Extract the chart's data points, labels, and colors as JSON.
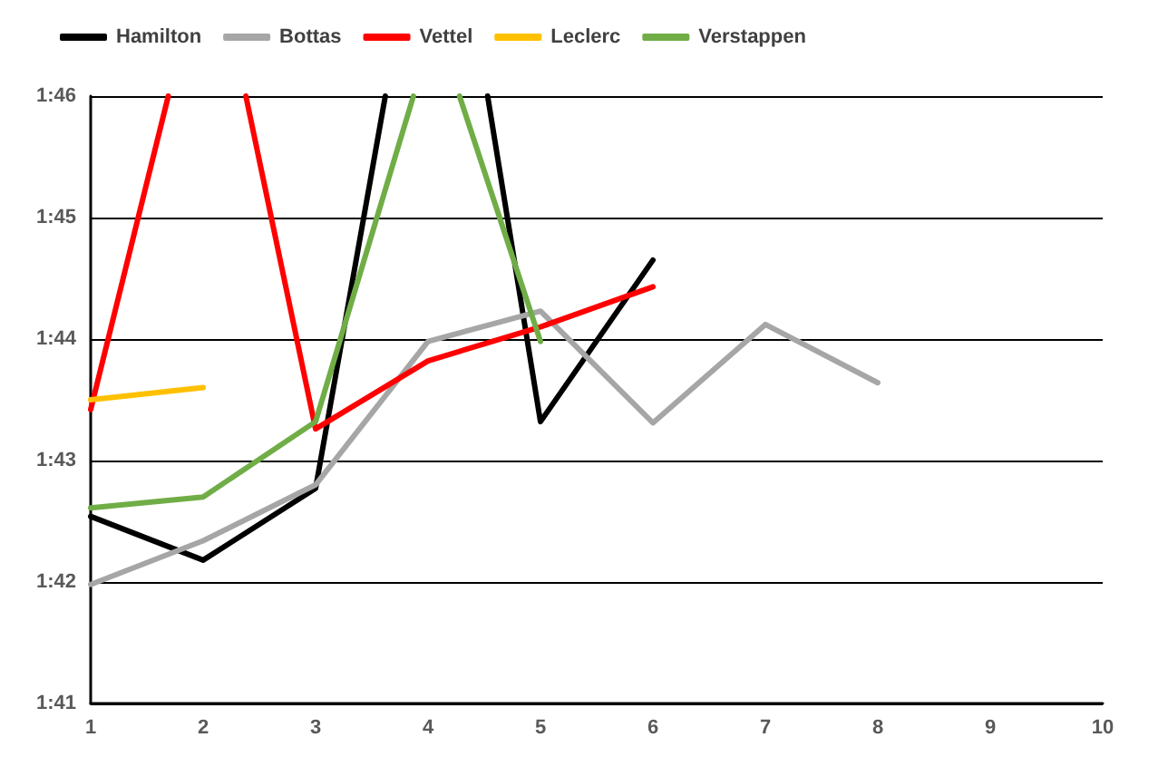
{
  "chart_data": {
    "type": "line",
    "xlim": [
      1,
      10
    ],
    "xticks": [
      1,
      2,
      3,
      4,
      5,
      6,
      7,
      8,
      9,
      10
    ],
    "ylim": [
      101,
      106
    ],
    "yticks": [
      {
        "value": 101,
        "label": "1:41"
      },
      {
        "value": 102,
        "label": "1:42"
      },
      {
        "value": 103,
        "label": "1:43"
      },
      {
        "value": 104,
        "label": "1:44"
      },
      {
        "value": 105,
        "label": "1:45"
      },
      {
        "value": 106,
        "label": "1:46"
      }
    ],
    "grid": "y",
    "legend": "top left",
    "marker": "none",
    "line_style": "solid",
    "series": [
      {
        "name": "Hamilton",
        "color": "#000000",
        "x": [
          1,
          2,
          3,
          3.62,
          4,
          4.53,
          5,
          6
        ],
        "values": [
          102.54,
          102.18,
          102.77,
          106,
          null,
          106,
          103.32,
          104.65
        ]
      },
      {
        "name": "Bottas",
        "color": "#a6a6a6",
        "x": [
          1,
          2,
          3,
          4,
          5,
          6,
          7,
          8
        ],
        "values": [
          101.98,
          102.34,
          102.8,
          103.98,
          104.23,
          103.31,
          104.12,
          103.64
        ]
      },
      {
        "name": "Vettel",
        "color": "#ff0000",
        "x": [
          1,
          1.69,
          2,
          2.38,
          3,
          4,
          5,
          6
        ],
        "values": [
          103.42,
          106,
          null,
          106,
          103.26,
          103.82,
          104.1,
          104.43
        ]
      },
      {
        "name": "Leclerc",
        "color": "#ffc000",
        "x": [
          1,
          2
        ],
        "values": [
          103.5,
          103.6
        ]
      },
      {
        "name": "Verstappen",
        "color": "#70ad47",
        "x": [
          1,
          2,
          3,
          3.87,
          4,
          4.28,
          5
        ],
        "values": [
          102.61,
          102.7,
          103.32,
          106,
          null,
          106,
          103.98
        ]
      }
    ]
  }
}
